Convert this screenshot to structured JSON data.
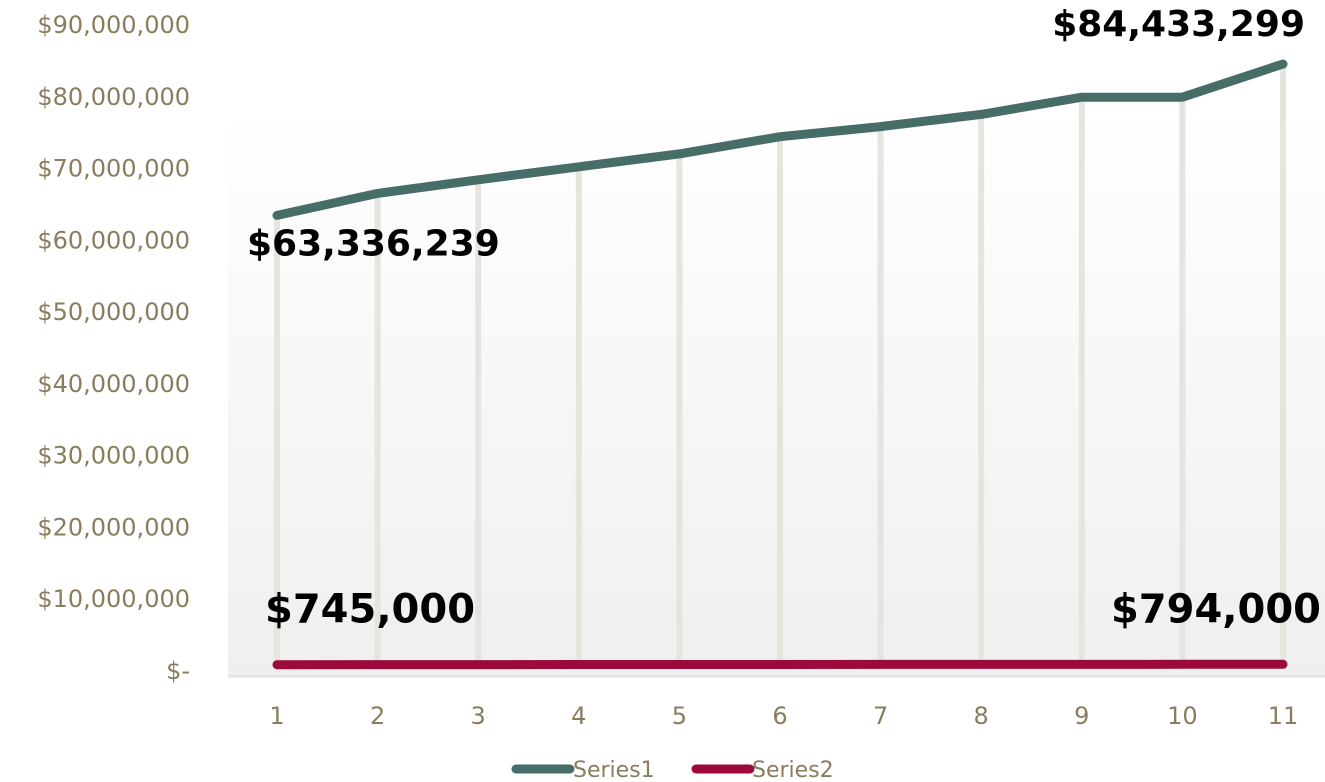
{
  "chart_data": {
    "type": "line",
    "x": [
      1,
      2,
      3,
      4,
      5,
      6,
      7,
      8,
      9,
      10,
      11
    ],
    "series": [
      {
        "name": "Series1",
        "color": "#466d68",
        "values": [
          63336239,
          66400000,
          68300000,
          70100000,
          71900000,
          74300000,
          75700000,
          77400000,
          79800000,
          79800000,
          84433299
        ]
      },
      {
        "name": "Series2",
        "color": "#9b0a3b",
        "values": [
          745000,
          750000,
          755000,
          760000,
          765000,
          770000,
          775000,
          780000,
          785000,
          790000,
          794000
        ]
      }
    ],
    "data_labels": [
      {
        "series": 0,
        "index": 0,
        "text": "$63,336,239"
      },
      {
        "series": 0,
        "index": 10,
        "text": "$84,433,299"
      },
      {
        "series": 1,
        "index": 0,
        "text": "$745,000"
      },
      {
        "series": 1,
        "index": 10,
        "text": "$794,000"
      }
    ],
    "ylim": [
      0,
      90000000
    ],
    "y_ticks": [
      0,
      10000000,
      20000000,
      30000000,
      40000000,
      50000000,
      60000000,
      70000000,
      80000000,
      90000000
    ],
    "y_tick_labels": [
      "$-",
      "$10,000,000",
      "$20,000,000",
      "$30,000,000",
      "$40,000,000",
      "$50,000,000",
      "$60,000,000",
      "$70,000,000",
      "$80,000,000",
      "$90,000,000"
    ],
    "x_tick_labels": [
      "1",
      "2",
      "3",
      "4",
      "5",
      "6",
      "7",
      "8",
      "9",
      "10",
      "11"
    ],
    "drop_lines": true,
    "grid": false,
    "legend_position": "bottom",
    "colors": {
      "tick_text": "#8a7d5e",
      "drop_line": "#e6e5dd",
      "plot_bg_top": "#ffffff",
      "plot_bg_bottom": "#efefef",
      "axis_line": "#d9d9d9"
    }
  }
}
